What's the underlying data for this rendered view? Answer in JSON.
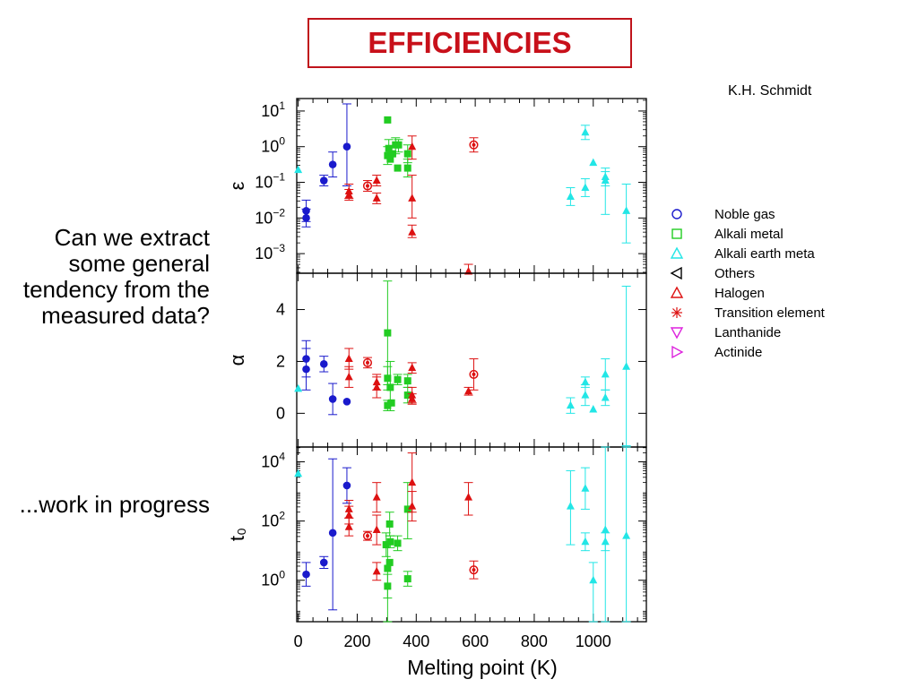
{
  "title": "EFFICIENCIES",
  "author": "K.H. Schmidt",
  "side_text": {
    "question": "Can we extract some general tendency from the measured data?",
    "progress": "...work in progress"
  },
  "colors": {
    "title": "#c8101a",
    "Noble gas": "#1a1acc",
    "Alkali metal": "#22cc22",
    "Alkali earth meta": "#22e6e6",
    "Others": "#000000",
    "Halogen": "#dd1111",
    "Transition element": "#dd1111",
    "Lanthanide": "#dd22dd",
    "Actinide": "#dd22dd"
  },
  "chart_data": {
    "type": "scatter",
    "xlabel": "Melting point (K)",
    "xlim": [
      -5,
      1180
    ],
    "xticks": [
      0,
      200,
      400,
      600,
      800,
      1000
    ],
    "legend": {
      "placement": "right",
      "entries": [
        {
          "name": "Noble gas",
          "marker": "circle-open"
        },
        {
          "name": "Alkali metal",
          "marker": "square-open"
        },
        {
          "name": "Alkali earth meta",
          "marker": "triangle-open"
        },
        {
          "name": "Others",
          "marker": "triangle-left-open"
        },
        {
          "name": "Halogen",
          "marker": "triangle-open"
        },
        {
          "name": "Transition element",
          "marker": "asterisk"
        },
        {
          "name": "Lanthanide",
          "marker": "triangle-down-open"
        },
        {
          "name": "Actinide",
          "marker": "triangle-right-open"
        }
      ]
    },
    "panels": [
      {
        "ylabel": "ε",
        "yscale": "log",
        "ylim": [
          -3.55,
          1.35
        ],
        "yticks": [
          {
            "v": 1,
            "base": "10",
            "exp": "1"
          },
          {
            "v": 0,
            "base": "10",
            "exp": "0"
          },
          {
            "v": -1,
            "base": "10",
            "exp": "−1"
          },
          {
            "v": -2,
            "base": "10",
            "exp": "−2"
          },
          {
            "v": -3,
            "base": "10",
            "exp": "−3"
          }
        ],
        "points": [
          {
            "g": "Alkali earth meta",
            "x": 0,
            "y": -0.65
          },
          {
            "g": "Noble gas",
            "x": 27,
            "y": -1.8,
            "lo": -2.1,
            "hi": -1.5
          },
          {
            "g": "Noble gas",
            "x": 27,
            "y": -2.0,
            "lo": -2.25,
            "hi": -1.75
          },
          {
            "g": "Noble gas",
            "x": 87,
            "y": -0.95,
            "lo": -1.1,
            "hi": -0.8
          },
          {
            "g": "Noble gas",
            "x": 117,
            "y": -0.5,
            "lo": -0.85,
            "hi": -0.15
          },
          {
            "g": "Noble gas",
            "x": 165,
            "y": 0.0,
            "lo": -1.1,
            "hi": 1.2
          },
          {
            "g": "Halogen",
            "x": 172,
            "y": -1.25,
            "lo": -1.45,
            "hi": -1.05
          },
          {
            "g": "Halogen",
            "x": 172,
            "y": -1.35,
            "lo": -1.5,
            "hi": -1.2
          },
          {
            "g": "Transition element",
            "x": 235,
            "y": -1.1,
            "lo": -1.25,
            "hi": -0.95
          },
          {
            "g": "Halogen",
            "x": 266,
            "y": -0.95,
            "lo": -1.1,
            "hi": -0.8
          },
          {
            "g": "Halogen",
            "x": 266,
            "y": -1.45,
            "lo": -1.6,
            "hi": -1.3
          },
          {
            "g": "Alkali metal",
            "x": 303,
            "y": 0.75
          },
          {
            "g": "Alkali metal",
            "x": 303,
            "y": -0.25,
            "lo": -0.5,
            "hi": 0.0
          },
          {
            "g": "Alkali metal",
            "x": 307,
            "y": -0.05,
            "lo": -0.3,
            "hi": 0.2
          },
          {
            "g": "Alkali metal",
            "x": 312,
            "y": -0.35
          },
          {
            "g": "Alkali metal",
            "x": 320,
            "y": -0.2
          },
          {
            "g": "Alkali metal",
            "x": 330,
            "y": 0.05,
            "lo": -0.2,
            "hi": 0.25
          },
          {
            "g": "Alkali metal",
            "x": 337,
            "y": -0.6
          },
          {
            "g": "Alkali metal",
            "x": 340,
            "y": 0.05,
            "lo": -0.15,
            "hi": 0.2
          },
          {
            "g": "Alkali metal",
            "x": 371,
            "y": -0.6,
            "lo": -0.85,
            "hi": -0.35
          },
          {
            "g": "Alkali metal",
            "x": 371,
            "y": -0.2,
            "lo": -0.45,
            "hi": 0.05
          },
          {
            "g": "Halogen",
            "x": 386,
            "y": 0.0,
            "lo": -0.35,
            "hi": 0.3
          },
          {
            "g": "Halogen",
            "x": 386,
            "y": -1.45,
            "lo": -2.0,
            "hi": -0.8
          },
          {
            "g": "Halogen",
            "x": 386,
            "y": -2.4,
            "lo": -2.55,
            "hi": -2.2
          },
          {
            "g": "Halogen",
            "x": 577,
            "y": -3.5,
            "lo": -3.65,
            "hi": -3.3
          },
          {
            "g": "Transition element",
            "x": 595,
            "y": 0.05,
            "lo": -0.15,
            "hi": 0.25
          },
          {
            "g": "Alkali earth meta",
            "x": 923,
            "y": -1.4,
            "lo": -1.65,
            "hi": -1.15
          },
          {
            "g": "Alkali earth meta",
            "x": 973,
            "y": 0.4,
            "lo": 0.2,
            "hi": 0.6
          },
          {
            "g": "Alkali earth meta",
            "x": 973,
            "y": -1.15,
            "lo": -1.4,
            "hi": -0.9
          },
          {
            "g": "Alkali earth meta",
            "x": 1000,
            "y": -0.45
          },
          {
            "g": "Alkali earth meta",
            "x": 1041,
            "y": -0.95,
            "lo": -1.9,
            "hi": -0.7
          },
          {
            "g": "Alkali earth meta",
            "x": 1041,
            "y": -0.85,
            "lo": -1.1,
            "hi": -0.6
          },
          {
            "g": "Alkali earth meta",
            "x": 1112,
            "y": -1.8,
            "lo": -2.7,
            "hi": -1.05
          }
        ]
      },
      {
        "ylabel": "α",
        "yscale": "linear",
        "ylim": [
          -1.3,
          5.4
        ],
        "yticks": [
          {
            "v": 4,
            "label": "4"
          },
          {
            "v": 2,
            "label": "2"
          },
          {
            "v": 0,
            "label": "0"
          }
        ],
        "points": [
          {
            "g": "Alkali earth meta",
            "x": 0,
            "y": 0.95
          },
          {
            "g": "Noble gas",
            "x": 27,
            "y": 2.1,
            "lo": 1.4,
            "hi": 2.8
          },
          {
            "g": "Noble gas",
            "x": 27,
            "y": 1.7,
            "lo": 0.9,
            "hi": 2.5
          },
          {
            "g": "Noble gas",
            "x": 87,
            "y": 1.9,
            "lo": 1.6,
            "hi": 2.2
          },
          {
            "g": "Noble gas",
            "x": 117,
            "y": 0.55,
            "lo": -0.05,
            "hi": 1.15
          },
          {
            "g": "Noble gas",
            "x": 165,
            "y": 0.45
          },
          {
            "g": "Halogen",
            "x": 172,
            "y": 2.1,
            "lo": 1.7,
            "hi": 2.5
          },
          {
            "g": "Halogen",
            "x": 172,
            "y": 1.4,
            "lo": 1.0,
            "hi": 1.8
          },
          {
            "g": "Transition element",
            "x": 235,
            "y": 1.95,
            "lo": 1.75,
            "hi": 2.15
          },
          {
            "g": "Halogen",
            "x": 266,
            "y": 1.2,
            "lo": 0.9,
            "hi": 1.5
          },
          {
            "g": "Halogen",
            "x": 266,
            "y": 1.0,
            "lo": 0.6,
            "hi": 1.4
          },
          {
            "g": "Alkali metal",
            "x": 303,
            "y": 3.1,
            "lo": 1.1,
            "hi": 5.1
          },
          {
            "g": "Alkali metal",
            "x": 303,
            "y": 1.35,
            "lo": 0.9,
            "hi": 1.8
          },
          {
            "g": "Alkali metal",
            "x": 303,
            "y": 0.3,
            "lo": 0.1,
            "hi": 0.5
          },
          {
            "g": "Alkali metal",
            "x": 312,
            "y": 1.0,
            "lo": 0.1,
            "hi": 2.0
          },
          {
            "g": "Alkali metal",
            "x": 316,
            "y": 0.4
          },
          {
            "g": "Alkali metal",
            "x": 337,
            "y": 1.3,
            "lo": 1.1,
            "hi": 1.5
          },
          {
            "g": "Alkali metal",
            "x": 371,
            "y": 1.25,
            "lo": 1.0,
            "hi": 1.5
          },
          {
            "g": "Alkali metal",
            "x": 371,
            "y": 0.7,
            "lo": 0.4,
            "hi": 1.0
          },
          {
            "g": "Halogen",
            "x": 386,
            "y": 1.75,
            "lo": 1.55,
            "hi": 1.95
          },
          {
            "g": "Halogen",
            "x": 386,
            "y": 0.7,
            "lo": 0.4,
            "hi": 1.0
          },
          {
            "g": "Halogen",
            "x": 386,
            "y": 0.55,
            "lo": 0.35,
            "hi": 0.75
          },
          {
            "g": "Halogen",
            "x": 577,
            "y": 0.85,
            "lo": 0.7,
            "hi": 1.0
          },
          {
            "g": "Transition element",
            "x": 595,
            "y": 1.5,
            "lo": 0.9,
            "hi": 2.1
          },
          {
            "g": "Alkali earth meta",
            "x": 923,
            "y": 0.3,
            "lo": 0.0,
            "hi": 0.6
          },
          {
            "g": "Alkali earth meta",
            "x": 973,
            "y": 1.2,
            "lo": 1.0,
            "hi": 1.4
          },
          {
            "g": "Alkali earth meta",
            "x": 973,
            "y": 0.7,
            "lo": 0.3,
            "hi": 1.1
          },
          {
            "g": "Alkali earth meta",
            "x": 1000,
            "y": 0.15
          },
          {
            "g": "Alkali earth meta",
            "x": 1041,
            "y": 1.5,
            "lo": 0.9,
            "hi": 2.1
          },
          {
            "g": "Alkali earth meta",
            "x": 1041,
            "y": 0.6,
            "lo": 0.3,
            "hi": 0.9
          },
          {
            "g": "Alkali earth meta",
            "x": 1112,
            "y": 1.8,
            "lo": -1.25,
            "hi": 4.9
          }
        ]
      },
      {
        "ylabel": "t₀",
        "yscale": "log",
        "ylim": [
          -1.4,
          4.5
        ],
        "yticks": [
          {
            "v": 4,
            "base": "10",
            "exp": "4"
          },
          {
            "v": 2,
            "base": "10",
            "exp": "2"
          },
          {
            "v": 0,
            "base": "10",
            "exp": "0"
          }
        ],
        "points": [
          {
            "g": "Alkali earth meta",
            "x": 0,
            "y": 3.6
          },
          {
            "g": "Noble gas",
            "x": 27,
            "y": 0.2,
            "lo": -0.2,
            "hi": 0.6
          },
          {
            "g": "Noble gas",
            "x": 87,
            "y": 0.6,
            "lo": 0.4,
            "hi": 0.8
          },
          {
            "g": "Noble gas",
            "x": 117,
            "y": 1.6,
            "lo": -1.0,
            "hi": 4.1
          },
          {
            "g": "Noble gas",
            "x": 165,
            "y": 3.2,
            "lo": 2.6,
            "hi": 3.8
          },
          {
            "g": "Halogen",
            "x": 172,
            "y": 2.4,
            "lo": 2.1,
            "hi": 2.7
          },
          {
            "g": "Halogen",
            "x": 172,
            "y": 2.2,
            "lo": 1.9,
            "hi": 2.5
          },
          {
            "g": "Halogen",
            "x": 172,
            "y": 1.8,
            "lo": 1.5,
            "hi": 2.1
          },
          {
            "g": "Transition element",
            "x": 235,
            "y": 1.5,
            "lo": 1.35,
            "hi": 1.65
          },
          {
            "g": "Halogen",
            "x": 266,
            "y": 2.8,
            "lo": 2.3,
            "hi": 3.3
          },
          {
            "g": "Halogen",
            "x": 266,
            "y": 1.7,
            "lo": 1.2,
            "hi": 2.2
          },
          {
            "g": "Halogen",
            "x": 266,
            "y": 0.3,
            "lo": 0.0,
            "hi": 0.6
          },
          {
            "g": "Alkali metal",
            "x": 298,
            "y": 1.2,
            "lo": 0.8,
            "hi": 1.6
          },
          {
            "g": "Alkali metal",
            "x": 303,
            "y": 0.4,
            "lo": -1.4,
            "hi": 1.2
          },
          {
            "g": "Alkali metal",
            "x": 303,
            "y": -0.2,
            "lo": -0.6,
            "hi": 0.2
          },
          {
            "g": "Alkali metal",
            "x": 310,
            "y": 1.9,
            "lo": 1.5,
            "hi": 2.3
          },
          {
            "g": "Alkali metal",
            "x": 312,
            "y": 1.3,
            "lo": 1.1,
            "hi": 1.5
          },
          {
            "g": "Alkali metal",
            "x": 310,
            "y": 0.6
          },
          {
            "g": "Alkali metal",
            "x": 337,
            "y": 1.25,
            "lo": 1.0,
            "hi": 1.5
          },
          {
            "g": "Alkali metal",
            "x": 371,
            "y": 0.05,
            "lo": -0.2,
            "hi": 0.3
          },
          {
            "g": "Alkali metal",
            "x": 371,
            "y": 2.4,
            "lo": 1.4,
            "hi": 3.3
          },
          {
            "g": "Halogen",
            "x": 386,
            "y": 3.3,
            "lo": 2.3,
            "hi": 4.3
          },
          {
            "g": "Halogen",
            "x": 386,
            "y": 2.5,
            "lo": 2.0,
            "hi": 3.0
          },
          {
            "g": "Halogen",
            "x": 577,
            "y": 2.8,
            "lo": 2.2,
            "hi": 3.3
          },
          {
            "g": "Transition element",
            "x": 595,
            "y": 0.35,
            "lo": 0.05,
            "hi": 0.65
          },
          {
            "g": "Alkali earth meta",
            "x": 923,
            "y": 2.5,
            "lo": 1.2,
            "hi": 3.7
          },
          {
            "g": "Alkali earth meta",
            "x": 973,
            "y": 3.1,
            "lo": 2.4,
            "hi": 3.8
          },
          {
            "g": "Alkali earth meta",
            "x": 973,
            "y": 1.3,
            "lo": 1.0,
            "hi": 1.6
          },
          {
            "g": "Alkali earth meta",
            "x": 1000,
            "y": 0.0,
            "lo": -1.4,
            "hi": 0.6
          },
          {
            "g": "Alkali earth meta",
            "x": 1041,
            "y": 1.7,
            "lo": -1.4,
            "hi": 4.5
          },
          {
            "g": "Alkali earth meta",
            "x": 1041,
            "y": 1.3,
            "lo": 1.0,
            "hi": 1.6
          },
          {
            "g": "Alkali earth meta",
            "x": 1112,
            "y": 1.5,
            "lo": -1.4,
            "hi": 4.5
          }
        ]
      }
    ]
  }
}
